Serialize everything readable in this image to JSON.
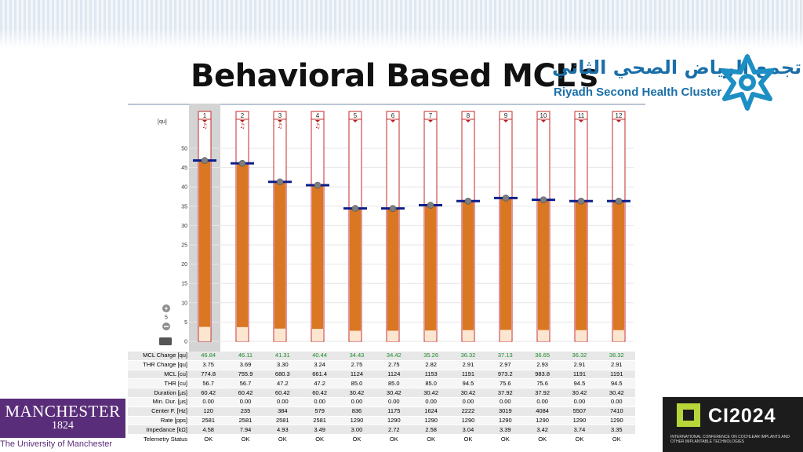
{
  "slide": {
    "title": "Behavioral Based MCL’s"
  },
  "logos": {
    "rshc_arabic": "تجمع الرياض الصحي الثاني",
    "rshc_english": "Riyadh Second Health Cluster",
    "manchester_name_a": "MANCHEST",
    "manchester_name_b": "ER",
    "manchester_year": "1824",
    "manchester_university": "The University of Manchester",
    "ci_name": "CI2024",
    "ci_subtitle": "INTERNATIONAL CONFERENCE ON COCHLEAR IMPLANTS AND OTHER IMPLANTABLE TECHNOLOGIES"
  },
  "colors": {
    "accent": "#1a6fa8",
    "bar": "#d97722",
    "bar_outline": "#c62828",
    "mcl_line": "#0d1e8c",
    "mcl_text": "#1d8a2a"
  },
  "fitting": {
    "unit_label": "[qu]",
    "y_axis_ticks": [
      "50",
      "45",
      "40",
      "35",
      "30",
      "25",
      "20",
      "15",
      "10",
      "5",
      "0"
    ],
    "step_value": "5",
    "plus_icon": "plus-circle-icon",
    "minus_icon": "minus-circle-icon",
    "list_icon": "list-icon",
    "selected_channel": 1,
    "channels": [
      "1",
      "2",
      "3",
      "4",
      "5",
      "6",
      "7",
      "8",
      "9",
      "10",
      "11",
      "12"
    ],
    "chart_data": {
      "type": "bar",
      "categories": [
        "1",
        "2",
        "3",
        "4",
        "5",
        "6",
        "7",
        "8",
        "9",
        "10",
        "11",
        "12"
      ],
      "ylabel": "[qu]",
      "ylim": [
        0,
        50
      ],
      "series": [
        {
          "name": "MCL Charge",
          "values": [
            46.84,
            46.11,
            41.31,
            40.44,
            34.43,
            34.42,
            35.26,
            36.32,
            37.13,
            36.65,
            36.32,
            36.32
          ]
        },
        {
          "name": "THR Charge",
          "values": [
            3.75,
            3.69,
            3.3,
            3.24,
            2.75,
            2.75,
            2.82,
            2.91,
            2.97,
            2.93,
            2.91,
            2.91
          ]
        }
      ]
    },
    "rows": [
      {
        "label": "MCL Charge [qu]",
        "cls": "mcl",
        "values": [
          "46.84",
          "46.11",
          "41.31",
          "40.44",
          "34.43",
          "34.42",
          "35.26",
          "36.32",
          "37.13",
          "36.65",
          "36.32",
          "36.32"
        ]
      },
      {
        "label": "THR Charge [qu]",
        "cls": "",
        "values": [
          "3.75",
          "3.69",
          "3.30",
          "3.24",
          "2.75",
          "2.75",
          "2.82",
          "2.91",
          "2.97",
          "2.93",
          "2.91",
          "2.91"
        ]
      },
      {
        "label": "MCL [cu]",
        "cls": "",
        "values": [
          "774.8",
          "755.9",
          "680.3",
          "661.4",
          "1124",
          "1124",
          "1153",
          "1191",
          "973.2",
          "983.8",
          "1191",
          "1191"
        ]
      },
      {
        "label": "THR [cu]",
        "cls": "",
        "values": [
          "56.7",
          "56.7",
          "47.2",
          "47.2",
          "85.0",
          "85.0",
          "85.0",
          "94.5",
          "75.6",
          "75.6",
          "94.5",
          "94.5"
        ]
      },
      {
        "label": "Duration [µs]",
        "cls": "",
        "values": [
          "60.42",
          "60.42",
          "60.42",
          "60.42",
          "30.42",
          "30.42",
          "30.42",
          "30.42",
          "37.92",
          "37.92",
          "30.42",
          "30.42"
        ]
      },
      {
        "label": "Min. Dur. [µs]",
        "cls": "",
        "values": [
          "0.00",
          "0.00",
          "0.00",
          "0.00",
          "0.00",
          "0.00",
          "0.00",
          "0.00",
          "0.00",
          "0.00",
          "0.00",
          "0.00"
        ]
      },
      {
        "label": "Center F. [Hz]",
        "cls": "",
        "values": [
          "120",
          "235",
          "384",
          "579",
          "836",
          "1175",
          "1624",
          "2222",
          "3019",
          "4084",
          "5507",
          "7410"
        ]
      },
      {
        "label": "Rate [pps]",
        "cls": "",
        "values": [
          "2581",
          "2581",
          "2581",
          "2581",
          "1290",
          "1290",
          "1290",
          "1290",
          "1290",
          "1290",
          "1290",
          "1290"
        ]
      },
      {
        "label": "Impedance [kΩ]",
        "cls": "",
        "values": [
          "4.58",
          "7.94",
          "4.93",
          "3.49",
          "3.00",
          "2.72",
          "2.58",
          "3.04",
          "3.39",
          "3.42",
          "3.74",
          "3.35"
        ]
      },
      {
        "label": "Telemetry Status",
        "cls": "status",
        "values": [
          "OK",
          "OK",
          "OK",
          "OK",
          "OK",
          "OK",
          "OK",
          "OK",
          "OK",
          "OK",
          "OK",
          "OK"
        ]
      }
    ]
  }
}
